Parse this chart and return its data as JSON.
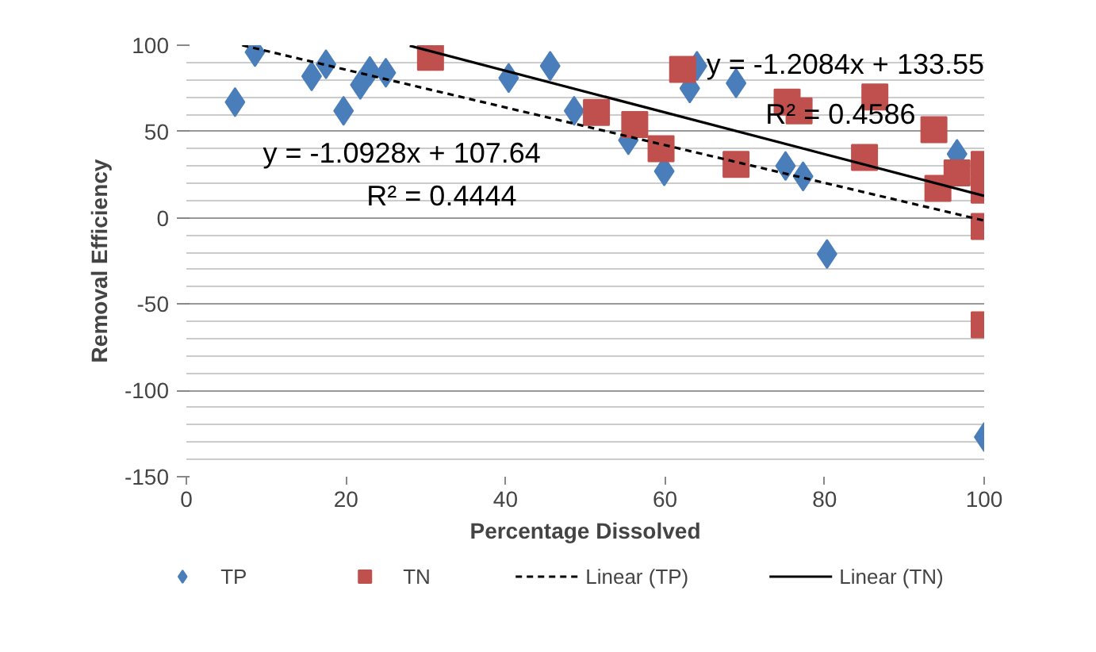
{
  "chart_data": {
    "type": "scatter",
    "xlabel": "Percentage Dissolved",
    "ylabel": "Removal Efficiency",
    "xlim": [
      0,
      100
    ],
    "ylim": [
      -150,
      100
    ],
    "xticks": [
      0,
      20,
      40,
      60,
      80,
      100
    ],
    "yticks": [
      -150,
      -100,
      -50,
      0,
      50,
      100
    ],
    "grid": "y",
    "legend": "bottom",
    "series": [
      {
        "name": "TP",
        "color": "#4a7ebb",
        "marker": "diamond",
        "x": [
          6.1,
          8.6,
          15.7,
          17.5,
          19.7,
          21.8,
          23,
          25,
          40.4,
          45.6,
          48.6,
          55.4,
          59.9,
          63.1,
          64,
          68.9,
          75.1,
          77.3,
          80.3,
          96.6,
          100
        ],
        "values": [
          67,
          96,
          82,
          89,
          62,
          77,
          85,
          84,
          81,
          88,
          62,
          45,
          27,
          75,
          88,
          78,
          30,
          24,
          -21,
          37,
          -127
        ]
      },
      {
        "name": "TN",
        "color": "#c0504d",
        "marker": "square",
        "x": [
          30.6,
          51.4,
          56.2,
          59.5,
          62.2,
          68.9,
          75.3,
          76.8,
          85,
          86.3,
          93.7,
          94.2,
          96.6,
          100,
          100,
          100,
          100
        ],
        "values": [
          93,
          61,
          54,
          40,
          86,
          31,
          67,
          62,
          35,
          70,
          51,
          17,
          26,
          31,
          16,
          -5,
          -62
        ]
      },
      {
        "name": "Linear (TP)",
        "type": "line",
        "color": "#000000",
        "line_style": "dashed",
        "x": [
          7,
          100
        ],
        "values": [
          100,
          -1.6
        ]
      },
      {
        "name": "Linear (TN)",
        "type": "line",
        "color": "#000000",
        "line_style": "solid",
        "x": [
          28,
          100
        ],
        "values": [
          99.7,
          12.7
        ]
      }
    ],
    "annotations": [
      "y = -1.0928x + 107.64",
      "R² = 0.4444",
      "y = -1.2084x + 133.55",
      "R² = 0.4586"
    ]
  }
}
